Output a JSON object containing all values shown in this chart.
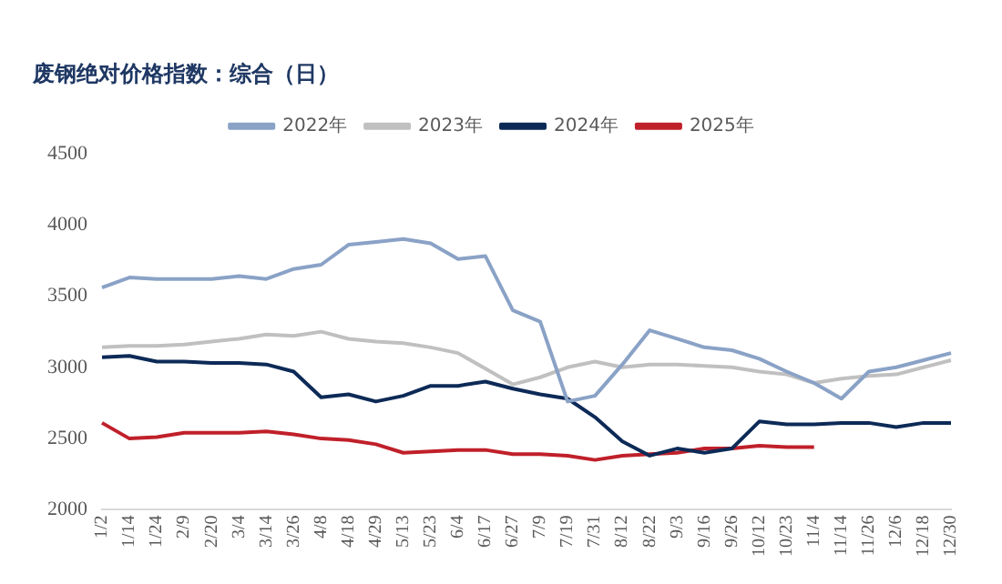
{
  "chart_data": {
    "type": "line",
    "title": "废钢绝对价格指数：综合（日）",
    "categories": [
      "1/2",
      "1/14",
      "1/24",
      "2/9",
      "2/20",
      "3/4",
      "3/14",
      "3/26",
      "4/8",
      "4/18",
      "4/29",
      "5/13",
      "5/23",
      "6/4",
      "6/17",
      "6/27",
      "7/9",
      "7/19",
      "7/31",
      "8/12",
      "8/22",
      "9/3",
      "9/16",
      "9/26",
      "10/12",
      "10/23",
      "11/4",
      "11/14",
      "11/26",
      "12/6",
      "12/18",
      "12/30"
    ],
    "series": [
      {
        "name": "2022年",
        "color": "#8aa2c6",
        "values": [
          3560,
          3630,
          3620,
          3620,
          3620,
          3640,
          3620,
          3690,
          3720,
          3860,
          3880,
          3900,
          3870,
          3760,
          3780,
          3400,
          3320,
          2760,
          2800,
          3020,
          3260,
          3200,
          3140,
          3120,
          3060,
          2970,
          2890,
          2780,
          2970,
          3000,
          3050,
          3100
        ]
      },
      {
        "name": "2023年",
        "color": "#c0c0c0",
        "values": [
          3140,
          3150,
          3150,
          3160,
          3180,
          3200,
          3230,
          3220,
          3250,
          3200,
          3180,
          3170,
          3140,
          3100,
          2990,
          2880,
          2930,
          3000,
          3040,
          3000,
          3020,
          3020,
          3010,
          3000,
          2970,
          2950,
          2890,
          2920,
          2940,
          2950,
          3000,
          3050
        ]
      },
      {
        "name": "2024年",
        "color": "#0d2a57",
        "values": [
          3070,
          3080,
          3040,
          3040,
          3030,
          3030,
          3020,
          2970,
          2790,
          2810,
          2760,
          2800,
          2870,
          2870,
          2900,
          2850,
          2810,
          2780,
          2650,
          2480,
          2380,
          2430,
          2400,
          2430,
          2620,
          2600,
          2600,
          2610,
          2610,
          2580,
          2610,
          2610
        ]
      },
      {
        "name": "2025年",
        "color": "#c0202a",
        "values": [
          2610,
          2500,
          2510,
          2540,
          2540,
          2540,
          2550,
          2530,
          2500,
          2490,
          2460,
          2400,
          2410,
          2420,
          2420,
          2390,
          2390,
          2380,
          2350,
          2380,
          2390,
          2400,
          2430,
          2430,
          2450,
          2440,
          2440,
          null,
          null,
          null,
          null,
          null
        ]
      }
    ],
    "ylim": [
      2000,
      4500
    ],
    "yticks": [
      2000,
      2500,
      3000,
      3500,
      4000,
      4500
    ],
    "grid": false,
    "legend": "top",
    "marker": "none",
    "line_style": "solid"
  }
}
